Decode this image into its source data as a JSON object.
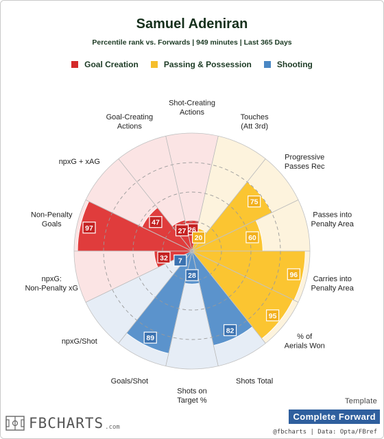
{
  "header": {
    "title": "Samuel Adeniran",
    "subtitle": "Percentile rank vs. Forwards | 949 minutes | Last 365 Days"
  },
  "legend": [
    {
      "label": "Goal Creation",
      "color": "#d42a2a"
    },
    {
      "label": "Passing & Possession",
      "color": "#f5be2c"
    },
    {
      "label": "Shooting",
      "color": "#4a87c4"
    }
  ],
  "chart_data": {
    "type": "radar",
    "range": [
      0,
      100
    ],
    "start_angle_deg": 90,
    "direction": "clockwise",
    "categories": [
      {
        "label": "Shot-Creating Actions",
        "value": 26,
        "group": "Goal Creation"
      },
      {
        "label": "Touches (Att 3rd)",
        "value": 20,
        "group": "Passing & Possession"
      },
      {
        "label": "Progressive Passes Rec",
        "value": 75,
        "group": "Passing & Possession"
      },
      {
        "label": "Passes into Penalty Area",
        "value": 60,
        "group": "Passing & Possession"
      },
      {
        "label": "Carries into Penalty Area",
        "value": 96,
        "group": "Passing & Possession"
      },
      {
        "label": "% of Aerials Won",
        "value": 95,
        "group": "Passing & Possession"
      },
      {
        "label": "Shots Total",
        "value": 82,
        "group": "Shooting"
      },
      {
        "label": "Shots on Target %",
        "value": 28,
        "group": "Shooting"
      },
      {
        "label": "Goals/Shot",
        "value": 89,
        "group": "Shooting"
      },
      {
        "label": "npxG/Shot",
        "value": 7,
        "group": "Shooting"
      },
      {
        "label": "npxG: Non-Penalty xG",
        "value": 32,
        "group": "Goal Creation"
      },
      {
        "label": "Non-Penalty Goals",
        "value": 97,
        "group": "Goal Creation"
      },
      {
        "label": "npxG + xAG",
        "value": 47,
        "group": "Goal Creation"
      },
      {
        "label": "Goal-Creating Actions",
        "value": 27,
        "group": "Goal Creation"
      }
    ],
    "colors": {
      "Goal Creation": {
        "fill": "#e03c3c",
        "bg": "#fbe4e4",
        "label": "#c42222"
      },
      "Passing & Possession": {
        "fill": "#fbc531",
        "bg": "#fdf3dd",
        "label": "#f2b01e"
      },
      "Shooting": {
        "fill": "#5b93cc",
        "bg": "#e6edf6",
        "label": "#3b72b0"
      }
    }
  },
  "footer": {
    "template_label": "Template",
    "template_name": "Complete Forward",
    "credit": "@fbcharts | Data: Opta/FBref",
    "brand": "FBCHARTS",
    "brand_suffix": ".com"
  }
}
